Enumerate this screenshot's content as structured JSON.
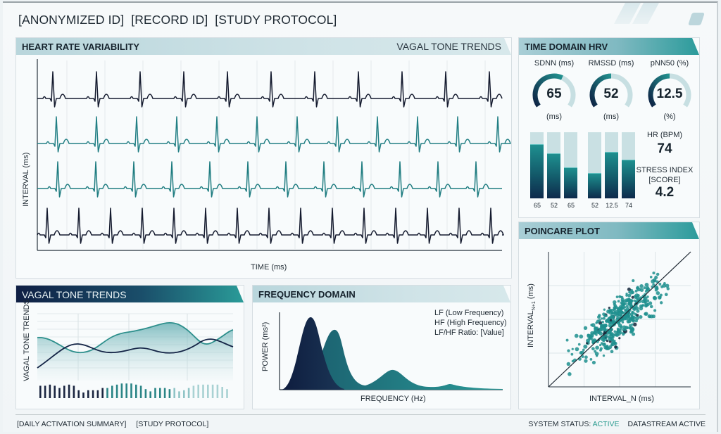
{
  "header": {
    "ids": [
      "[ANONYMIZED ID]",
      "[RECORD ID]",
      "[STUDY PROTOCOL]"
    ]
  },
  "hrv_panel": {
    "title": "HEART RATE VARIABILITY",
    "subtitle": "VAGAL TONE TRENDS",
    "ylabel": "INTERVAL (ms)",
    "xlabel": "TIME (ms)",
    "trace_colors": [
      "#141a2e",
      "#227f84",
      "#1e7c80",
      "#141a2e"
    ]
  },
  "time_domain": {
    "title": "TIME DOMAIN HRV",
    "gauges": [
      {
        "label": "SDNN (ms)",
        "value": "65",
        "unit": "(ms)",
        "fraction": 0.6
      },
      {
        "label": "RMSSD (ms)",
        "value": "52",
        "unit": "(ms)",
        "fraction": 0.5
      },
      {
        "label": "pNN50 (%)",
        "value": "12.5",
        "unit": "(%)",
        "fraction": 0.5
      }
    ],
    "bars": [
      {
        "label": "65",
        "fill": 0.82
      },
      {
        "label": "52",
        "fill": 0.68
      },
      {
        "label": "65",
        "fill": 0.47
      },
      {
        "label": "52",
        "fill": 0.38
      },
      {
        "label": "12.5",
        "fill": 0.7
      },
      {
        "label": "74",
        "fill": 0.59
      }
    ],
    "hr_label": "HR (BPM)",
    "hr_value": "74",
    "stress_label_1": "STRESS INDEX",
    "stress_label_2": "[SCORE]",
    "stress_value": "4.2"
  },
  "vagal_panel": {
    "title": "VAGAL TONE TRENDS",
    "ylabel": "VAGAL TONE TRENDS"
  },
  "frequency_panel": {
    "title": "FREQUENCY DOMAIN",
    "ylabel": "POWER (ms²)",
    "xlabel": "FREQUENCY (Hz)",
    "legend": [
      "LF (Low Frequency)",
      "HF (High Frequency)",
      "LF/HF Ratio: [Value]"
    ]
  },
  "poincare_panel": {
    "title": "POINCARE PLOT",
    "ylabel": "INTERVAL",
    "ylabel_sub": "N+1",
    "ylabel_unit": " (ms)",
    "xlabel": "INTERVAL_N (ms)"
  },
  "footer": {
    "left": [
      "[DAILY ACTIVATION SUMMARY]",
      "[STUDY PROTOCOL]"
    ],
    "status_label": "SYSTEM STATUS:",
    "status_value": "ACTIVE",
    "stream": "DATASTREAM ACTIVE"
  },
  "colors": {
    "navy": "#0f1f44",
    "teal": "#2a9b98",
    "active": "#2a9b8f"
  }
}
